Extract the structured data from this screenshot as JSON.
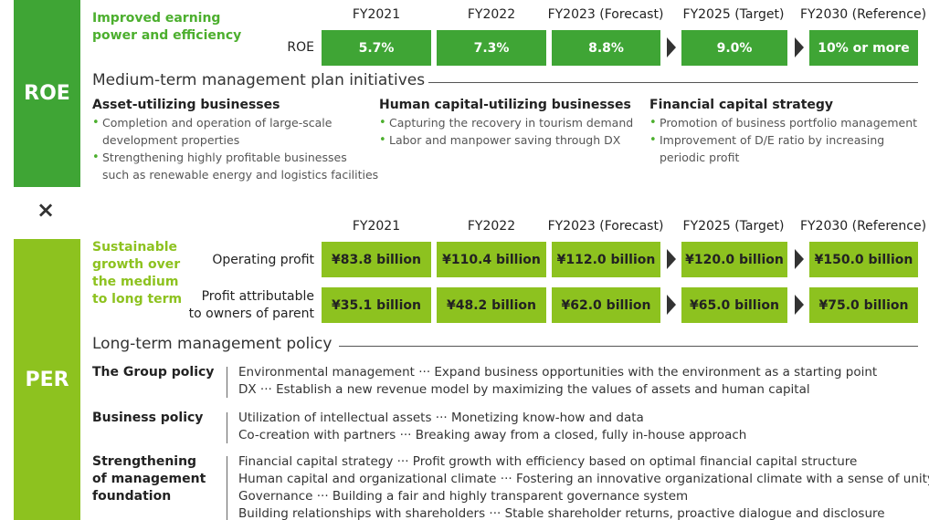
{
  "roe": {
    "label": "ROE",
    "heading": [
      "Improved earning",
      "power and efficiency"
    ],
    "years": [
      "FY2021",
      "FY2022",
      "FY2023 (Forecast)",
      "FY2025 (Target)",
      "FY2030 (Reference)"
    ],
    "metric": "ROE",
    "values": [
      "5.7%",
      "7.3%",
      "8.8%",
      "9.0%",
      "10% or more"
    ],
    "initiatives_title": "Medium-term management plan initiatives",
    "columns": [
      {
        "title": "Asset-utilizing businesses",
        "items": [
          [
            "Completion and operation of large-scale",
            "development properties"
          ],
          [
            "Strengthening highly profitable businesses",
            "such as renewable energy and logistics facilities"
          ]
        ]
      },
      {
        "title": "Human capital-utilizing businesses",
        "items": [
          [
            "Capturing the recovery in tourism demand"
          ],
          [
            "Labor and manpower saving through DX"
          ]
        ]
      },
      {
        "title": "Financial capital strategy",
        "items": [
          [
            "Promotion of business portfolio management"
          ],
          [
            "Improvement of D/E ratio by increasing",
            "periodic profit"
          ]
        ]
      }
    ]
  },
  "separator": "×",
  "per": {
    "label": "PER",
    "heading": [
      "Sustainable",
      "growth over",
      "the medium",
      "to long term"
    ],
    "years": [
      "FY2021",
      "FY2022",
      "FY2023 (Forecast)",
      "FY2025 (Target)",
      "FY2030 (Reference)"
    ],
    "rows": [
      {
        "label": [
          "Operating profit"
        ],
        "values": [
          "¥83.8 billion",
          "¥110.4 billion",
          "¥112.0 billion",
          "¥120.0 billion",
          "¥150.0 billion"
        ]
      },
      {
        "label": [
          "Profit attributable",
          "to owners of parent"
        ],
        "values": [
          "¥35.1 billion",
          "¥48.2 billion",
          "¥62.0 billion",
          "¥65.0 billion",
          "¥75.0 billion"
        ]
      }
    ],
    "policy_title": "Long-term management policy",
    "policies": [
      {
        "name": [
          "The Group  policy"
        ],
        "items": [
          "Environmental management ··· Expand business opportunities with the environment as a starting point",
          "DX ··· Establish a new revenue model by maximizing the values of assets and human capital"
        ]
      },
      {
        "name": [
          "Business policy"
        ],
        "items": [
          "Utilization of intellectual assets ··· Monetizing know-how and data",
          "Co-creation with partners ··· Breaking away from a closed, fully in-house approach"
        ]
      },
      {
        "name": [
          "Strengthening",
          "of management",
          "foundation"
        ],
        "items": [
          "Financial capital strategy ··· Profit growth with efficiency based on optimal financial capital structure",
          "Human capital and organizational climate ··· Fostering an innovative organizational climate with a sense of unity",
          "Governance ··· Building a fair and highly transparent governance system",
          "Building relationships with shareholders ··· Stable shareholder returns, proactive dialogue and disclosure"
        ]
      }
    ]
  }
}
